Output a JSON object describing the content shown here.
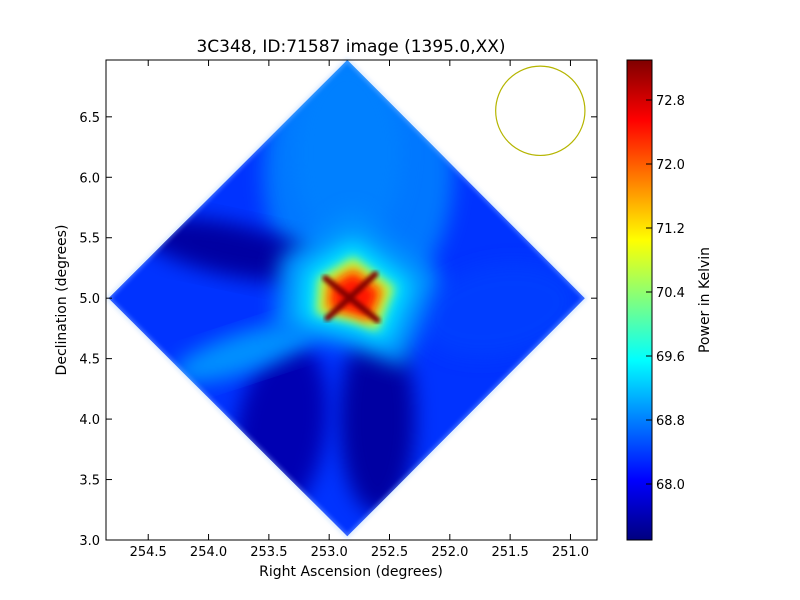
{
  "chart_data": {
    "type": "heatmap",
    "title": "3C348, ID:71587 image (1395.0,XX)",
    "xlabel": "Right Ascension (degrees)",
    "ylabel": "Declination (degrees)",
    "xlim": [
      254.85,
      250.78
    ],
    "ylim": [
      3.0,
      6.97
    ],
    "x_ticks": [
      254.5,
      254.0,
      253.5,
      253.0,
      252.5,
      252.0,
      251.5,
      251.0
    ],
    "x_tick_labels": [
      "254.5",
      "254.0",
      "253.5",
      "253.0",
      "252.5",
      "252.0",
      "251.5",
      "251.0"
    ],
    "y_ticks": [
      3.0,
      3.5,
      4.0,
      4.5,
      5.0,
      5.5,
      6.0,
      6.5
    ],
    "y_tick_labels": [
      "3.0",
      "3.5",
      "4.0",
      "4.5",
      "5.0",
      "5.5",
      "6.0",
      "6.5"
    ],
    "colorbar": {
      "label": "Power in Kelvin",
      "range": [
        67.3,
        73.3
      ],
      "ticks": [
        68.0,
        68.8,
        69.6,
        70.4,
        71.2,
        72.0,
        72.8
      ],
      "tick_labels": [
        "68.0",
        "68.8",
        "69.6",
        "70.4",
        "71.2",
        "72.0",
        "72.8"
      ],
      "colormap": "jet"
    },
    "beam_circle": {
      "ra": 251.25,
      "dec": 6.55,
      "radius_deg": 0.37,
      "color": "#b5b500"
    },
    "features": [
      {
        "name": "peak",
        "ra": 252.8,
        "dec": 5.0,
        "value": 73.3
      },
      {
        "name": "minimum-north-east",
        "ra": 253.8,
        "dec": 5.4,
        "value": 67.5
      },
      {
        "name": "minimum-south",
        "ra": 252.6,
        "dec": 4.0,
        "value": 67.5
      },
      {
        "name": "minimum-south-east",
        "ra": 253.4,
        "dec": 3.9,
        "value": 67.6
      },
      {
        "name": "ridge-north",
        "ra": 252.85,
        "dec": 6.2,
        "value": 68.8
      },
      {
        "name": "ridge-west",
        "ra": 251.6,
        "dec": 4.9,
        "value": 68.4
      },
      {
        "name": "ridge-south-east",
        "ra": 253.7,
        "dec": 4.55,
        "value": 68.9
      }
    ],
    "footprint": "diamond",
    "footprint_vertices_radec": [
      [
        252.85,
        6.97
      ],
      [
        250.88,
        5.0
      ],
      [
        252.85,
        3.03
      ],
      [
        254.83,
        5.0
      ]
    ]
  }
}
